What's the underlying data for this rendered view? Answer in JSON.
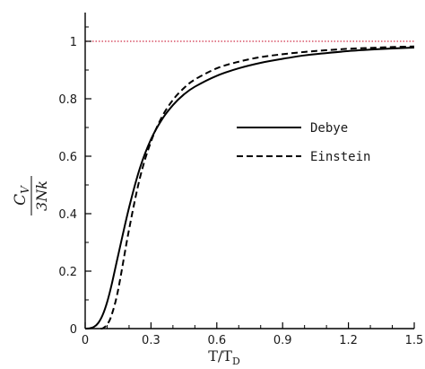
{
  "chart_data": {
    "type": "line",
    "xlabel": {
      "main": "T/T",
      "sub": "D"
    },
    "ylabel": {
      "numerator": "C",
      "numerator_sub": "V",
      "denominator": "3Nk"
    },
    "xlim": [
      0,
      1.5
    ],
    "ylim": [
      0,
      1.1
    ],
    "x_ticks": [
      0,
      0.3,
      0.6,
      0.9,
      1.2,
      1.5
    ],
    "x_tick_labels": [
      "0",
      "0.3",
      "0.6",
      "0.9",
      "1.2",
      "1.5"
    ],
    "y_ticks": [
      0,
      0.2,
      0.4,
      0.6,
      0.8,
      1
    ],
    "y_tick_labels": [
      "0",
      "0.2",
      "0.4",
      "0.6",
      "0.8",
      "1"
    ],
    "grid": false,
    "legend_position": "center-right",
    "reference_line": {
      "y": 1,
      "color": "#d0304a",
      "style": "dotted"
    },
    "series": [
      {
        "name": "Debye",
        "style": "solid",
        "color": "#000000",
        "x": [
          0,
          0.02,
          0.04,
          0.06,
          0.08,
          0.1,
          0.12,
          0.15,
          0.2,
          0.25,
          0.3,
          0.35,
          0.4,
          0.45,
          0.5,
          0.6,
          0.7,
          0.8,
          0.9,
          1.0,
          1.1,
          1.2,
          1.3,
          1.4,
          1.5
        ],
        "y": [
          0,
          0.001,
          0.006,
          0.02,
          0.048,
          0.092,
          0.151,
          0.254,
          0.421,
          0.56,
          0.659,
          0.728,
          0.778,
          0.815,
          0.842,
          0.88,
          0.906,
          0.925,
          0.939,
          0.951,
          0.959,
          0.966,
          0.971,
          0.975,
          0.978
        ]
      },
      {
        "name": "Einstein",
        "style": "dashed",
        "color": "#000000",
        "x": [
          0.07,
          0.08,
          0.1,
          0.12,
          0.15,
          0.2,
          0.25,
          0.3,
          0.35,
          0.4,
          0.45,
          0.5,
          0.6,
          0.7,
          0.8,
          0.9,
          1.0,
          1.1,
          1.2,
          1.3,
          1.4,
          1.5
        ],
        "y": [
          0.0002,
          0.001,
          0.014,
          0.046,
          0.134,
          0.345,
          0.526,
          0.651,
          0.737,
          0.796,
          0.837,
          0.867,
          0.906,
          0.929,
          0.945,
          0.955,
          0.963,
          0.969,
          0.974,
          0.977,
          0.98,
          0.982
        ]
      }
    ]
  }
}
